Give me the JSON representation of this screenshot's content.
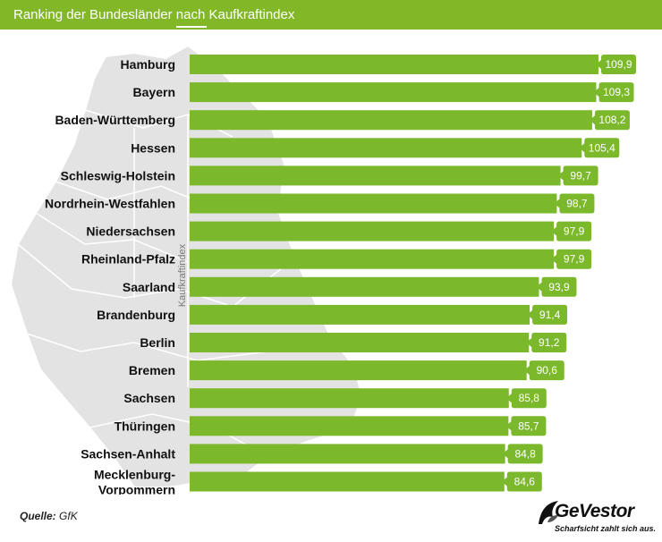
{
  "header": {
    "title": "Ranking der Bundesländer nach Kaufkraftindex"
  },
  "footer": {
    "source_label": "Quelle:",
    "source_value": "GfK",
    "brand_name": "GeVestor",
    "brand_slogan": "Scharfsicht zahlt sich aus."
  },
  "colors": {
    "accent": "#82b828",
    "bar": "#7cb82c",
    "map": "#e3e3e3"
  },
  "chart_data": {
    "type": "bar",
    "orientation": "horizontal",
    "title": "Ranking der Bundesländer nach Kaufkraftindex",
    "xlabel": "",
    "ylabel": "Kaufkraftindex",
    "categories": [
      "Hamburg",
      "Bayern",
      "Baden-Württemberg",
      "Hessen",
      "Schleswig-Holstein",
      "Nordrhein-Westfahlen",
      "Niedersachsen",
      "Rheinland-Pfalz",
      "Saarland",
      "Brandenburg",
      "Berlin",
      "Bremen",
      "Sachsen",
      "Thüringen",
      "Sachsen-Anhalt",
      "Mecklenburg-\nVorpommern"
    ],
    "values": [
      109.9,
      109.3,
      108.2,
      105.4,
      99.7,
      98.7,
      97.9,
      97.9,
      93.9,
      91.4,
      91.2,
      90.6,
      85.8,
      85.7,
      84.8,
      84.6
    ],
    "value_labels": [
      "109,9",
      "109,3",
      "108,2",
      "105,4",
      "99,7",
      "98,7",
      "97,9",
      "97,9",
      "93,9",
      "91,4",
      "91,2",
      "90,6",
      "85,8",
      "85,7",
      "84,8",
      "84,6"
    ],
    "grid": false,
    "legend": "none"
  }
}
